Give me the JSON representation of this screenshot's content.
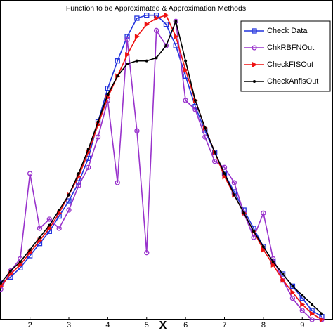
{
  "chart_data": {
    "type": "line",
    "title": "Function to be Approximated & Approximation Methods",
    "x_label": "X",
    "x": [
      1.25,
      1.5,
      1.75,
      2,
      2.25,
      2.5,
      2.75,
      3,
      3.25,
      3.5,
      3.75,
      4,
      4.25,
      4.5,
      4.75,
      5,
      5.25,
      5.5,
      5.75,
      6,
      6.25,
      6.5,
      6.75,
      7,
      7.25,
      7.5,
      7.75,
      8,
      8.25,
      8.5,
      8.75,
      9,
      9.25,
      9.5
    ],
    "series": [
      {
        "name": "Check Data",
        "color": "#2233dd",
        "marker": "square",
        "values": [
          0.12,
          0.14,
          0.17,
          0.21,
          0.25,
          0.29,
          0.34,
          0.39,
          0.45,
          0.53,
          0.65,
          0.76,
          0.85,
          0.93,
          0.99,
          1.0,
          1.0,
          0.97,
          0.9,
          0.8,
          0.7,
          0.62,
          0.55,
          0.48,
          0.42,
          0.36,
          0.3,
          0.24,
          0.19,
          0.15,
          0.11,
          0.07,
          0.03,
          0.01
        ]
      },
      {
        "name": "ChkRBFNOut",
        "color": "#9933cc",
        "marker": "circle",
        "values": [
          0.1,
          0.16,
          0.2,
          0.48,
          0.3,
          0.33,
          0.3,
          0.36,
          0.44,
          0.5,
          0.6,
          0.72,
          0.45,
          0.92,
          0.62,
          0.22,
          0.95,
          0.9,
          0.98,
          0.72,
          0.69,
          0.6,
          0.52,
          0.5,
          0.45,
          0.35,
          0.27,
          0.35,
          0.2,
          0.13,
          0.07,
          0.03,
          0.0,
          0.0
        ]
      },
      {
        "name": "CheckFISOut",
        "color": "#ee1111",
        "marker": "triangle",
        "values": [
          0.11,
          0.15,
          0.18,
          0.22,
          0.26,
          0.3,
          0.35,
          0.41,
          0.47,
          0.55,
          0.64,
          0.73,
          0.8,
          0.87,
          0.93,
          0.97,
          0.99,
          1.0,
          0.93,
          0.82,
          0.72,
          0.63,
          0.55,
          0.47,
          0.41,
          0.35,
          0.29,
          0.23,
          0.18,
          0.13,
          0.09,
          0.05,
          0.02,
          0.0
        ]
      },
      {
        "name": "CheckAnfisOut",
        "color": "#000000",
        "marker": "dot",
        "values": [
          0.12,
          0.16,
          0.19,
          0.23,
          0.27,
          0.31,
          0.36,
          0.41,
          0.48,
          0.56,
          0.65,
          0.74,
          0.8,
          0.84,
          0.85,
          0.85,
          0.86,
          0.9,
          0.98,
          0.85,
          0.72,
          0.63,
          0.55,
          0.48,
          0.41,
          0.35,
          0.29,
          0.24,
          0.19,
          0.15,
          0.11,
          0.08,
          0.05,
          0.02
        ]
      }
    ],
    "xlim": [
      1.23,
      9.79
    ],
    "xticks": [
      2,
      3,
      4,
      5,
      6,
      7,
      8,
      9
    ],
    "ylim": [
      0,
      1.05
    ],
    "legend": "top-right"
  }
}
